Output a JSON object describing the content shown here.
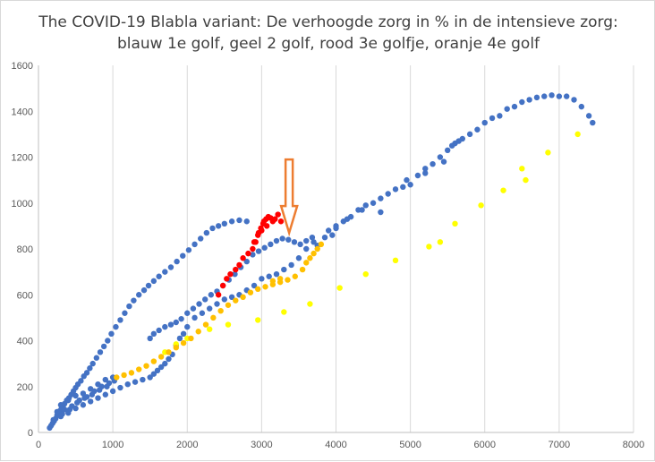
{
  "chart_data": {
    "type": "scatter",
    "title_lines": [
      "The COVID-19 Blabla variant: De verhoogde zorg in % in de intensieve zorg:",
      "blauw 1e golf, geel 2 golf, rood 3e golfje, oranje 4e golf"
    ],
    "xlim": [
      0,
      8000
    ],
    "ylim": [
      0,
      1600
    ],
    "x_ticks": [
      0,
      1000,
      2000,
      3000,
      4000,
      5000,
      6000,
      7000,
      8000
    ],
    "y_ticks": [
      0,
      200,
      400,
      600,
      800,
      1000,
      1200,
      1400,
      1600
    ],
    "grid": "vertical",
    "legend": "none",
    "annotation": {
      "type": "arrow-down",
      "color": "#ed7d31",
      "x": 3370,
      "y_top": 1190,
      "y_tip": 870
    },
    "series": [
      {
        "color": "#4472c4",
        "points": [
          [
            150,
            20
          ],
          [
            170,
            30
          ],
          [
            190,
            40
          ],
          [
            210,
            50
          ],
          [
            230,
            60
          ],
          [
            250,
            75
          ],
          [
            270,
            85
          ],
          [
            290,
            95
          ],
          [
            310,
            105
          ],
          [
            330,
            115
          ],
          [
            350,
            125
          ],
          [
            380,
            140
          ],
          [
            410,
            150
          ],
          [
            440,
            165
          ],
          [
            470,
            180
          ],
          [
            500,
            195
          ],
          [
            530,
            210
          ],
          [
            570,
            225
          ],
          [
            610,
            245
          ],
          [
            650,
            260
          ],
          [
            690,
            280
          ],
          [
            730,
            300
          ],
          [
            780,
            325
          ],
          [
            830,
            350
          ],
          [
            880,
            375
          ],
          [
            930,
            400
          ],
          [
            980,
            430
          ],
          [
            1040,
            460
          ],
          [
            1100,
            490
          ],
          [
            1160,
            520
          ],
          [
            1220,
            550
          ],
          [
            1280,
            575
          ],
          [
            1350,
            600
          ],
          [
            1420,
            620
          ],
          [
            1480,
            640
          ],
          [
            1550,
            660
          ],
          [
            1620,
            680
          ],
          [
            1700,
            700
          ],
          [
            1780,
            720
          ],
          [
            1860,
            745
          ],
          [
            1940,
            770
          ],
          [
            2020,
            795
          ],
          [
            2100,
            820
          ],
          [
            2180,
            845
          ],
          [
            2260,
            870
          ],
          [
            2340,
            890
          ],
          [
            2420,
            900
          ],
          [
            2500,
            910
          ],
          [
            2600,
            920
          ],
          [
            2700,
            925
          ],
          [
            2800,
            920
          ],
          [
            1500,
            410
          ],
          [
            1550,
            430
          ],
          [
            1620,
            445
          ],
          [
            1700,
            460
          ],
          [
            1780,
            470
          ],
          [
            1850,
            480
          ],
          [
            1920,
            495
          ],
          [
            2000,
            520
          ],
          [
            2080,
            540
          ],
          [
            2160,
            560
          ],
          [
            2240,
            580
          ],
          [
            2320,
            600
          ],
          [
            2400,
            615
          ],
          [
            2480,
            640
          ],
          [
            2560,
            665
          ],
          [
            2640,
            690
          ],
          [
            2720,
            720
          ],
          [
            2800,
            745
          ],
          [
            2880,
            775
          ],
          [
            2960,
            790
          ],
          [
            3040,
            805
          ],
          [
            3120,
            820
          ],
          [
            3200,
            835
          ],
          [
            3280,
            845
          ],
          [
            3360,
            840
          ],
          [
            3440,
            830
          ],
          [
            3520,
            820
          ],
          [
            3600,
            835
          ],
          [
            3680,
            850
          ],
          [
            3750,
            815
          ],
          [
            3900,
            880
          ],
          [
            3950,
            860
          ],
          [
            4000,
            900
          ],
          [
            4100,
            920
          ],
          [
            4200,
            940
          ],
          [
            4300,
            970
          ],
          [
            4400,
            990
          ],
          [
            4500,
            1000
          ],
          [
            4600,
            1020
          ],
          [
            4700,
            1040
          ],
          [
            4800,
            1060
          ],
          [
            4900,
            1070
          ],
          [
            5000,
            1080
          ],
          [
            5100,
            1120
          ],
          [
            5200,
            1150
          ],
          [
            5300,
            1170
          ],
          [
            5400,
            1200
          ],
          [
            5500,
            1230
          ],
          [
            5600,
            1260
          ],
          [
            5700,
            1280
          ],
          [
            5800,
            1300
          ],
          [
            5900,
            1320
          ],
          [
            6000,
            1350
          ],
          [
            6100,
            1370
          ],
          [
            6200,
            1380
          ],
          [
            6300,
            1410
          ],
          [
            6400,
            1420
          ],
          [
            6500,
            1440
          ],
          [
            6600,
            1450
          ],
          [
            6700,
            1460
          ],
          [
            6800,
            1465
          ],
          [
            6900,
            1470
          ],
          [
            7000,
            1465
          ],
          [
            7100,
            1465
          ],
          [
            7200,
            1450
          ],
          [
            7300,
            1420
          ],
          [
            7400,
            1380
          ],
          [
            7450,
            1350
          ],
          [
            5650,
            1270
          ],
          [
            5560,
            1250
          ],
          [
            5450,
            1180
          ],
          [
            5200,
            1130
          ],
          [
            4950,
            1100
          ],
          [
            4600,
            960
          ],
          [
            4350,
            970
          ],
          [
            4150,
            930
          ],
          [
            4000,
            890
          ],
          [
            3850,
            850
          ],
          [
            3700,
            830
          ],
          [
            3600,
            800
          ],
          [
            3500,
            760
          ],
          [
            3400,
            730
          ],
          [
            3300,
            710
          ],
          [
            3200,
            690
          ],
          [
            3100,
            680
          ],
          [
            3000,
            670
          ],
          [
            2900,
            640
          ],
          [
            2800,
            620
          ],
          [
            2700,
            600
          ],
          [
            2600,
            590
          ],
          [
            2500,
            580
          ],
          [
            2400,
            560
          ],
          [
            2300,
            540
          ],
          [
            2200,
            520
          ],
          [
            2100,
            500
          ],
          [
            2000,
            460
          ],
          [
            1950,
            430
          ],
          [
            1900,
            410
          ],
          [
            1850,
            380
          ],
          [
            1800,
            340
          ],
          [
            1750,
            320
          ],
          [
            1700,
            300
          ],
          [
            1650,
            285
          ],
          [
            1600,
            270
          ],
          [
            1550,
            255
          ],
          [
            1500,
            240
          ],
          [
            1400,
            230
          ],
          [
            1300,
            220
          ],
          [
            1200,
            210
          ],
          [
            1100,
            195
          ],
          [
            1000,
            180
          ],
          [
            900,
            165
          ],
          [
            800,
            150
          ],
          [
            700,
            135
          ],
          [
            600,
            120
          ],
          [
            500,
            105
          ],
          [
            400,
            85
          ],
          [
            300,
            70
          ],
          [
            200,
            55
          ],
          [
            300,
            120
          ],
          [
            400,
            140
          ],
          [
            500,
            160
          ],
          [
            600,
            170
          ],
          [
            700,
            190
          ],
          [
            800,
            210
          ],
          [
            900,
            230
          ],
          [
            1000,
            240
          ],
          [
            350,
            100
          ],
          [
            450,
            115
          ],
          [
            550,
            140
          ],
          [
            650,
            155
          ],
          [
            750,
            180
          ],
          [
            850,
            200
          ],
          [
            950,
            215
          ],
          [
            250,
            90
          ],
          [
            320,
            80
          ],
          [
            420,
            100
          ],
          [
            520,
            130
          ],
          [
            620,
            150
          ],
          [
            720,
            165
          ],
          [
            820,
            185
          ],
          [
            920,
            200
          ],
          [
            1020,
            225
          ]
        ]
      },
      {
        "color": "#ffff00",
        "points": [
          [
            1700,
            350
          ],
          [
            1850,
            385
          ],
          [
            2000,
            410
          ],
          [
            2300,
            450
          ],
          [
            2550,
            470
          ],
          [
            2950,
            490
          ],
          [
            3300,
            525
          ],
          [
            3650,
            560
          ],
          [
            4050,
            630
          ],
          [
            4400,
            690
          ],
          [
            4800,
            750
          ],
          [
            5250,
            810
          ],
          [
            5600,
            910
          ],
          [
            5950,
            990
          ],
          [
            6250,
            1055
          ],
          [
            6550,
            1100
          ],
          [
            6850,
            1220
          ],
          [
            7250,
            1300
          ],
          [
            6500,
            1150
          ],
          [
            5400,
            830
          ]
        ]
      },
      {
        "color": "#ff0000",
        "points": [
          [
            2420,
            600
          ],
          [
            2480,
            640
          ],
          [
            2530,
            670
          ],
          [
            2580,
            690
          ],
          [
            2650,
            710
          ],
          [
            2700,
            730
          ],
          [
            2750,
            760
          ],
          [
            2820,
            780
          ],
          [
            2880,
            800
          ],
          [
            2920,
            830
          ],
          [
            2960,
            870
          ],
          [
            2990,
            890
          ],
          [
            3020,
            910
          ],
          [
            3060,
            930
          ],
          [
            3090,
            940
          ],
          [
            3120,
            935
          ],
          [
            3150,
            920
          ],
          [
            3180,
            930
          ],
          [
            3220,
            950
          ],
          [
            3260,
            920
          ],
          [
            3030,
            920
          ],
          [
            3070,
            900
          ],
          [
            3000,
            880
          ],
          [
            2950,
            860
          ],
          [
            2900,
            830
          ]
        ]
      },
      {
        "color": "#ffc000",
        "points": [
          [
            1050,
            240
          ],
          [
            1150,
            250
          ],
          [
            1250,
            260
          ],
          [
            1350,
            275
          ],
          [
            1450,
            290
          ],
          [
            1550,
            310
          ],
          [
            1650,
            330
          ],
          [
            1750,
            350
          ],
          [
            1850,
            370
          ],
          [
            1950,
            390
          ],
          [
            2050,
            410
          ],
          [
            2150,
            440
          ],
          [
            2250,
            470
          ],
          [
            2350,
            500
          ],
          [
            2450,
            530
          ],
          [
            2550,
            555
          ],
          [
            2650,
            575
          ],
          [
            2750,
            590
          ],
          [
            2850,
            610
          ],
          [
            2950,
            625
          ],
          [
            3050,
            635
          ],
          [
            3150,
            645
          ],
          [
            3250,
            655
          ],
          [
            3350,
            665
          ],
          [
            3450,
            680
          ],
          [
            3550,
            710
          ],
          [
            3600,
            740
          ],
          [
            3650,
            760
          ],
          [
            3700,
            780
          ],
          [
            3750,
            800
          ],
          [
            3800,
            820
          ],
          [
            3150,
            660
          ],
          [
            3250,
            670
          ]
        ]
      }
    ]
  }
}
